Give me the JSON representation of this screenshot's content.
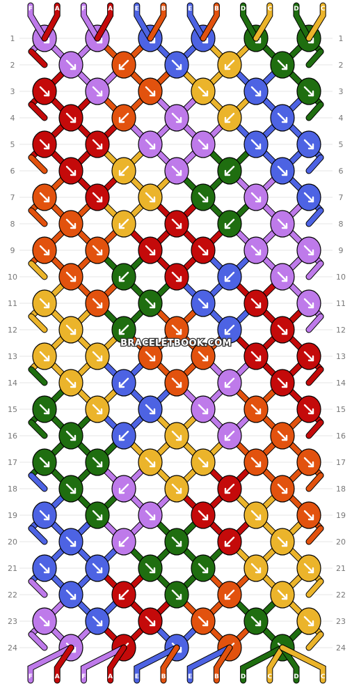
{
  "watermark": "BRACELETBOOK.COM",
  "colors": {
    "A": "#c40a0a",
    "B": "#e2520e",
    "C": "#ebb42b",
    "D": "#1f6e10",
    "E": "#4d63e3",
    "F": "#be7aea"
  },
  "strings_top": [
    "F",
    "A",
    "F",
    "A",
    "E",
    "B",
    "E",
    "B",
    "D",
    "C",
    "D",
    "C"
  ],
  "strings_bottom": [
    "F",
    "A",
    "F",
    "A",
    "E",
    "B",
    "E",
    "B",
    "D",
    "C",
    "D",
    "C"
  ],
  "row_labels": [
    "1",
    "2",
    "3",
    "4",
    "5",
    "6",
    "7",
    "8",
    "9",
    "10",
    "11",
    "12",
    "13",
    "14",
    "15",
    "16",
    "17",
    "18",
    "19",
    "20",
    "21",
    "22",
    "23",
    "24"
  ],
  "knot_rows": [
    [
      "F",
      "F",
      "E",
      "E",
      "D",
      "D"
    ],
    [
      "F",
      "B",
      "E",
      "C",
      "D"
    ],
    [
      "A",
      "F",
      "B",
      "C",
      "E",
      "D"
    ],
    [
      "A",
      "B",
      "F",
      "C",
      "E"
    ],
    [
      "A",
      "A",
      "F",
      "F",
      "E",
      "E"
    ],
    [
      "A",
      "C",
      "F",
      "D",
      "E"
    ],
    [
      "B",
      "A",
      "C",
      "D",
      "F",
      "E"
    ],
    [
      "B",
      "C",
      "A",
      "D",
      "F"
    ],
    [
      "B",
      "B",
      "A",
      "A",
      "F",
      "F"
    ],
    [
      "B",
      "D",
      "A",
      "E",
      "F"
    ],
    [
      "C",
      "B",
      "D",
      "E",
      "A",
      "F"
    ],
    [
      "C",
      "D",
      "B",
      "E",
      "A"
    ],
    [
      "C",
      "C",
      "B",
      "B",
      "A",
      "A"
    ],
    [
      "C",
      "E",
      "B",
      "F",
      "A"
    ],
    [
      "D",
      "C",
      "E",
      "F",
      "B",
      "A"
    ],
    [
      "D",
      "E",
      "C",
      "F",
      "B"
    ],
    [
      "D",
      "D",
      "C",
      "C",
      "B",
      "B"
    ],
    [
      "D",
      "F",
      "C",
      "A",
      "B"
    ],
    [
      "E",
      "D",
      "F",
      "A",
      "C",
      "B"
    ],
    [
      "E",
      "F",
      "D",
      "A",
      "C"
    ],
    [
      "E",
      "E",
      "D",
      "D",
      "C",
      "C"
    ],
    [
      "E",
      "A",
      "D",
      "B",
      "C"
    ],
    [
      "F",
      "E",
      "A",
      "B",
      "D",
      "C"
    ],
    [
      "F",
      "A",
      "E",
      "B",
      "D"
    ]
  ],
  "knot_dirs": [
    [
      "se",
      "se",
      "se",
      "se",
      "se",
      "se"
    ],
    [
      "se",
      "sw",
      "se",
      "sw",
      "se"
    ],
    [
      "se",
      "se",
      "se",
      "se",
      "se",
      "se"
    ],
    [
      "se",
      "sw",
      "se",
      "sw",
      "se"
    ],
    [
      "se",
      "se",
      "se",
      "se",
      "se",
      "se"
    ],
    [
      "se",
      "sw",
      "se",
      "sw",
      "se"
    ],
    [
      "se",
      "se",
      "se",
      "se",
      "se",
      "se"
    ],
    [
      "se",
      "sw",
      "se",
      "sw",
      "se"
    ],
    [
      "se",
      "se",
      "se",
      "se",
      "se",
      "se"
    ],
    [
      "se",
      "sw",
      "se",
      "sw",
      "se"
    ],
    [
      "se",
      "se",
      "se",
      "se",
      "se",
      "se"
    ],
    [
      "se",
      "sw",
      "se",
      "sw",
      "se"
    ],
    [
      "se",
      "se",
      "se",
      "se",
      "se",
      "se"
    ],
    [
      "se",
      "sw",
      "se",
      "sw",
      "se"
    ],
    [
      "se",
      "se",
      "se",
      "se",
      "se",
      "se"
    ],
    [
      "se",
      "sw",
      "se",
      "sw",
      "se"
    ],
    [
      "se",
      "se",
      "se",
      "se",
      "se",
      "se"
    ],
    [
      "se",
      "sw",
      "se",
      "sw",
      "se"
    ],
    [
      "se",
      "se",
      "se",
      "se",
      "se",
      "se"
    ],
    [
      "se",
      "sw",
      "se",
      "sw",
      "se"
    ],
    [
      "se",
      "se",
      "se",
      "se",
      "se",
      "se"
    ],
    [
      "se",
      "sw",
      "se",
      "sw",
      "se"
    ],
    [
      "se",
      "se",
      "se",
      "se",
      "se",
      "se"
    ],
    [
      "se",
      "sw",
      "se",
      "sw",
      "se"
    ]
  ]
}
